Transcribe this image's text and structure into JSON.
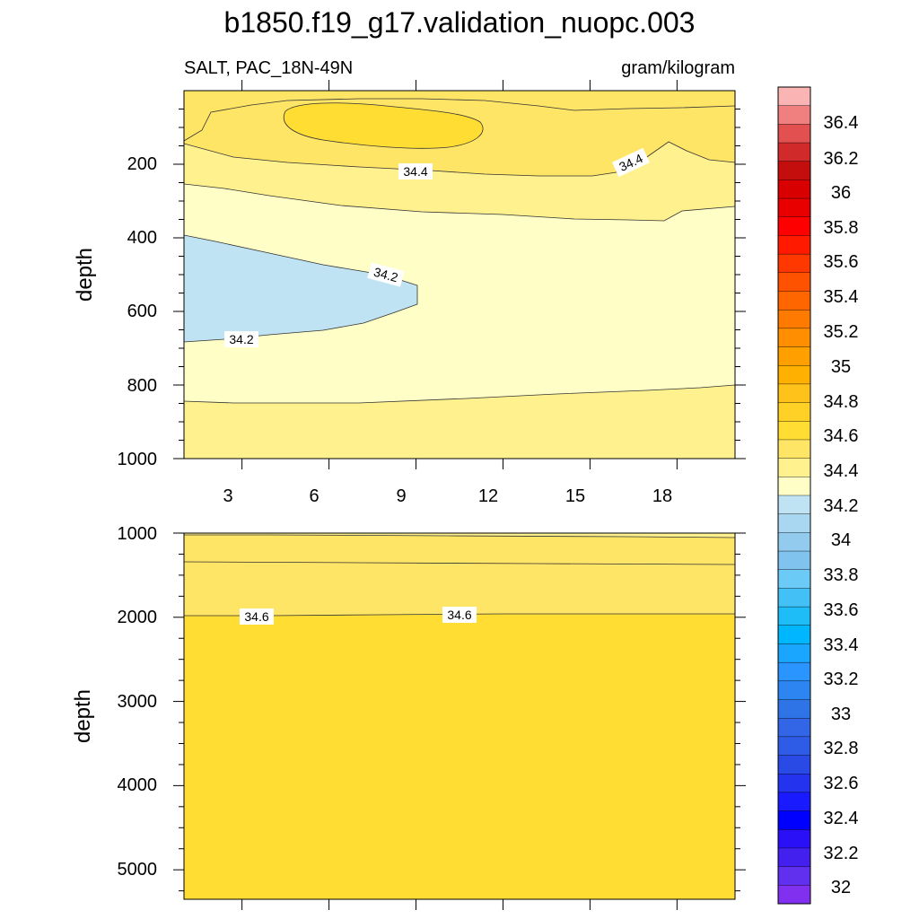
{
  "figure": {
    "title": "b1850.f19_g17.validation_nuopc.003",
    "subtitle_left": "SALT, PAC_18N-49N",
    "subtitle_right": "gram/kilogram"
  },
  "colors": {
    "fill_34_0_34_2": "#bfe3f3",
    "fill_34_2_34_4": "#fefec6",
    "fill_34_4_34_6": "#fef18e",
    "fill_34_6_34_8": "#ffe566",
    "fill_34_8_35_0": "#ffdd33",
    "contour_line": "#333333"
  },
  "chart_data": [
    {
      "type": "contour",
      "panel": "upper",
      "title": "SALT, PAC_18N-49N",
      "units": "gram/kilogram",
      "xlabel": "",
      "ylabel": "depth",
      "xlim": [
        1,
        20
      ],
      "ylim": [
        1000,
        0
      ],
      "x_ticks": [
        "3",
        "6",
        "9",
        "12",
        "15",
        "18"
      ],
      "y_ticks": [
        "200",
        "400",
        "600",
        "800",
        "1000"
      ],
      "contour_labels": [
        "34.4",
        "34.4",
        "34.2",
        "34.2"
      ],
      "regions": [
        {
          "level_range": "34.8-35.0",
          "description": "core near x 4-10, depth ~40-160"
        },
        {
          "level_range": "34.4-34.6",
          "description": "upper layer depth 0-~260"
        },
        {
          "level_range": "34.0-34.2",
          "description": "fresh tongue x 1-9.5, depth ~390-680"
        },
        {
          "level_range": "34.2-34.4",
          "description": "intermediate layer depth ~260-850"
        },
        {
          "level_range": "34.4-34.6",
          "description": "below depth ~850"
        }
      ]
    },
    {
      "type": "contour",
      "panel": "lower",
      "xlabel": "",
      "ylabel": "depth",
      "xlim": [
        1,
        20
      ],
      "ylim": [
        5350,
        1000
      ],
      "y_ticks": [
        "1000",
        "2000",
        "3000",
        "4000",
        "5000"
      ],
      "contour_labels": [
        "34.6",
        "34.6"
      ],
      "regions": [
        {
          "level_range": "34.4-34.6",
          "description": "depth 1000-~1020"
        },
        {
          "level_range": "34.6-34.8",
          "description": "depth ~1020-~1980"
        },
        {
          "level_range": "34.8-35.0",
          "description": "depth ~1980-5350"
        }
      ]
    },
    {
      "type": "colorbar",
      "levels": [
        "36.4",
        "36.2",
        "36",
        "35.8",
        "35.6",
        "35.4",
        "35.2",
        "35",
        "34.8",
        "34.6",
        "34.4",
        "34.2",
        "34",
        "33.8",
        "33.6",
        "33.4",
        "33.2",
        "33",
        "32.8",
        "32.6",
        "32.4",
        "32.2",
        "32"
      ],
      "colors": [
        "#fbb4b4",
        "#f08080",
        "#e25050",
        "#d12a2a",
        "#c40e0e",
        "#d80000",
        "#e80000",
        "#ff0000",
        "#ff1a00",
        "#ff3800",
        "#ff5200",
        "#ff6600",
        "#ff7a00",
        "#ff8e00",
        "#ffa000",
        "#ffb000",
        "#ffc21a",
        "#ffd026",
        "#ffdd33",
        "#ffe566",
        "#fef18e",
        "#fefec6",
        "#bfe3f3",
        "#a9d7f1",
        "#93cbef",
        "#80c3ef",
        "#6ccaf7",
        "#43c1f6",
        "#1ebdf8",
        "#00b6ff",
        "#1aa5ff",
        "#2a94ff",
        "#2c85f0",
        "#2e74e6",
        "#3366e6",
        "#2e5ce6",
        "#2a4ae6",
        "#2333ee",
        "#1a1aff",
        "#0000ff",
        "#2a10f6",
        "#4420ee",
        "#6030ee",
        "#8030ee"
      ]
    }
  ]
}
